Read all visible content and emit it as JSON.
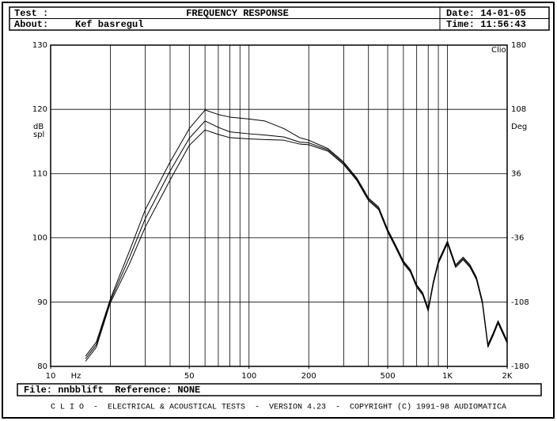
{
  "header": {
    "test_label": "Test :",
    "title": "FREQUENCY RESPONSE",
    "date": "Date: 14-01-05",
    "about_label": "About:",
    "about": "Kef basregul",
    "time": "Time: 11:56:43"
  },
  "chart_data": {
    "type": "line",
    "xlabel": "Hz",
    "ylabel": [
      "dB",
      "spl"
    ],
    "y2label": "Deg",
    "annotation": "Clio",
    "xscale": "log",
    "grid": true,
    "color": "#000000",
    "xlim": [
      10,
      2000
    ],
    "xticks": [
      10,
      50,
      100,
      200,
      500,
      {
        "value": 1000,
        "label": "1K"
      },
      {
        "value": 2000,
        "label": "2K"
      }
    ],
    "xgrid": [
      20,
      30,
      40,
      50,
      60,
      70,
      80,
      90,
      100,
      200,
      300,
      400,
      500,
      600,
      700,
      800,
      900,
      1000
    ],
    "ylim": [
      80,
      130
    ],
    "yticks": [
      80,
      90,
      100,
      110,
      120,
      130
    ],
    "y2lim": [
      -180,
      180
    ],
    "y2ticks": [
      -180,
      -108,
      -36,
      36,
      108,
      180
    ],
    "x": [
      15,
      17,
      20,
      25,
      30,
      40,
      50,
      60,
      70,
      80,
      100,
      120,
      150,
      180,
      200,
      250,
      300,
      350,
      400,
      450,
      500,
      550,
      600,
      650,
      700,
      750,
      800,
      850,
      900,
      1000,
      1100,
      1200,
      1300,
      1400,
      1500,
      1600,
      1700,
      1800,
      2000
    ],
    "series": [
      {
        "color": "#000000",
        "values": [
          81.6,
          83.8,
          90.5,
          98,
          104.4,
          111.8,
          117,
          119.9,
          119.2,
          118.8,
          118.5,
          118.2,
          117,
          115.6,
          115.2,
          113.9,
          111.8,
          109.3,
          106.2,
          104.8,
          101.3,
          98.8,
          96.4,
          95.1,
          92.7,
          91.5,
          89,
          93.3,
          96.4,
          99.5,
          95.8,
          97,
          95.8,
          93.9,
          90.2,
          83.4,
          85.2,
          87.1,
          84
        ]
      },
      {
        "color": "#000000",
        "values": [
          81.2,
          83.4,
          90.2,
          97,
          103,
          110.4,
          115.5,
          118.2,
          117.2,
          116.5,
          116.2,
          116,
          115.7,
          114.9,
          114.8,
          113.7,
          111.6,
          109.1,
          106,
          104.6,
          101.1,
          98.6,
          96.2,
          94.9,
          92.5,
          91.3,
          88.8,
          93.1,
          96.2,
          99.3,
          95.6,
          96.8,
          95.6,
          93.7,
          90,
          83.2,
          85,
          86.9,
          83.8
        ]
      },
      {
        "color": "#000000",
        "values": [
          80.8,
          83,
          89.9,
          96,
          101.7,
          109,
          114.4,
          116.8,
          116.1,
          115.6,
          115.4,
          115.3,
          115.2,
          114.6,
          114.5,
          113.5,
          111.4,
          108.9,
          105.8,
          104.4,
          100.9,
          98.4,
          96,
          94.7,
          92.3,
          91.1,
          88.6,
          92.9,
          96,
          99.1,
          95.4,
          96.6,
          95.4,
          93.5,
          89.8,
          83,
          84.8,
          86.7,
          83.6
        ]
      }
    ]
  },
  "footer": {
    "file": "File: nnbblift  Reference: NONE",
    "banner": "C L I O  -  ELECTRICAL & ACOUSTICAL TESTS  -  VERSION 4.23  -  COPYRIGHT (C) 1991-98 AUDIOMATICA"
  }
}
